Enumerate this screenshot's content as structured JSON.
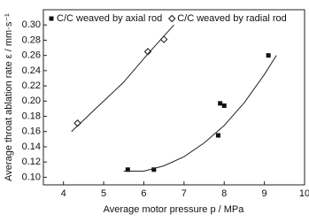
{
  "chart_data": {
    "type": "scatter",
    "xlabel": "Average motor pressure p / MPa",
    "ylabel": "Average throat ablation rate ε / mm·s⁻¹",
    "xlim": [
      3.5,
      10
    ],
    "xticks": [
      4,
      5,
      6,
      7,
      8,
      9,
      10
    ],
    "ylim": [
      0.09,
      0.32
    ],
    "yticks": [
      {
        "value": 0.1,
        "label": "0.10"
      },
      {
        "value": 0.12,
        "label": "0.12"
      },
      {
        "value": 0.14,
        "label": "0.14"
      },
      {
        "value": 0.16,
        "label": "0.16"
      },
      {
        "value": 0.18,
        "label": "0.18"
      },
      {
        "value": 0.2,
        "label": "0.20"
      },
      {
        "value": 0.22,
        "label": "0.22"
      },
      {
        "value": 0.24,
        "label": "0.24"
      },
      {
        "value": 0.26,
        "label": "0.26"
      },
      {
        "value": 0.28,
        "label": "0.28"
      },
      {
        "value": 0.3,
        "label": "0.30"
      }
    ],
    "series": [
      {
        "name": "C/C weaved by axial rod",
        "marker": "square",
        "color": "#111111",
        "x": [
          5.6,
          6.25,
          7.85,
          7.9,
          8.0,
          9.1
        ],
        "values": [
          0.11,
          0.11,
          0.155,
          0.197,
          0.194,
          0.26
        ]
      },
      {
        "name": "C/C weaved by radial rod",
        "marker": "diamond",
        "color": "#111111",
        "x": [
          4.35,
          6.1,
          6.5
        ],
        "values": [
          0.171,
          0.265,
          0.281
        ]
      },
      {
        "marker": "line",
        "color": "#222222",
        "x": [
          5.5,
          6.0,
          6.5,
          7.0,
          7.5,
          8.0,
          8.5,
          9.0,
          9.3
        ],
        "values": [
          0.108,
          0.108,
          0.115,
          0.127,
          0.145,
          0.168,
          0.198,
          0.235,
          0.26
        ]
      },
      {
        "marker": "line",
        "color": "#222222",
        "x": [
          4.2,
          4.8,
          5.5,
          6.1,
          6.75
        ],
        "values": [
          0.16,
          0.19,
          0.225,
          0.262,
          0.3
        ]
      }
    ]
  }
}
